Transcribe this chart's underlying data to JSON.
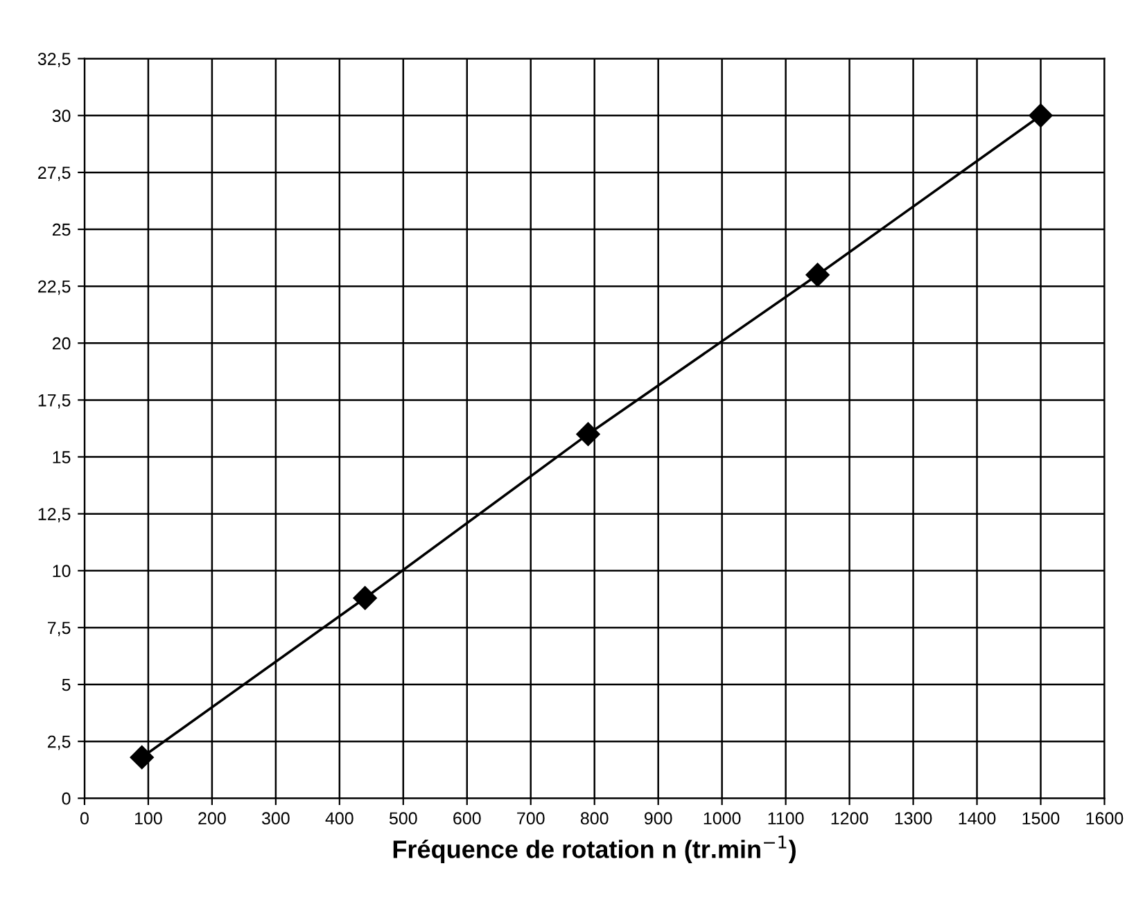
{
  "chart_data": {
    "type": "line",
    "xlabel": "Fréquence de rotation n (tr.min$^{−1}$)",
    "x": [
      90,
      440,
      790,
      1150,
      1500
    ],
    "series": [
      {
        "color": "#000000",
        "values": [
          1.8,
          8.8,
          16,
          23,
          30
        ]
      }
    ],
    "marker": "diamond",
    "line_style": "solid",
    "grid": true,
    "legend": false,
    "xlim": [
      0,
      1600
    ],
    "xticks": [
      0,
      100,
      200,
      300,
      400,
      500,
      600,
      700,
      800,
      900,
      1000,
      1100,
      1200,
      1300,
      1400,
      1500,
      1600
    ],
    "ylim": [
      0,
      32.5
    ],
    "yticks": [
      0,
      {
        "value": 2.5,
        "label": "2,5"
      },
      5,
      {
        "value": 7.5,
        "label": "7,5"
      },
      10,
      {
        "value": 12.5,
        "label": "12,5"
      },
      15,
      {
        "value": 17.5,
        "label": "17,5"
      },
      20,
      {
        "value": 22.5,
        "label": "22,5"
      },
      25,
      {
        "value": 27.5,
        "label": "27,5"
      },
      30,
      {
        "value": 32.5,
        "label": "32,5"
      }
    ]
  }
}
